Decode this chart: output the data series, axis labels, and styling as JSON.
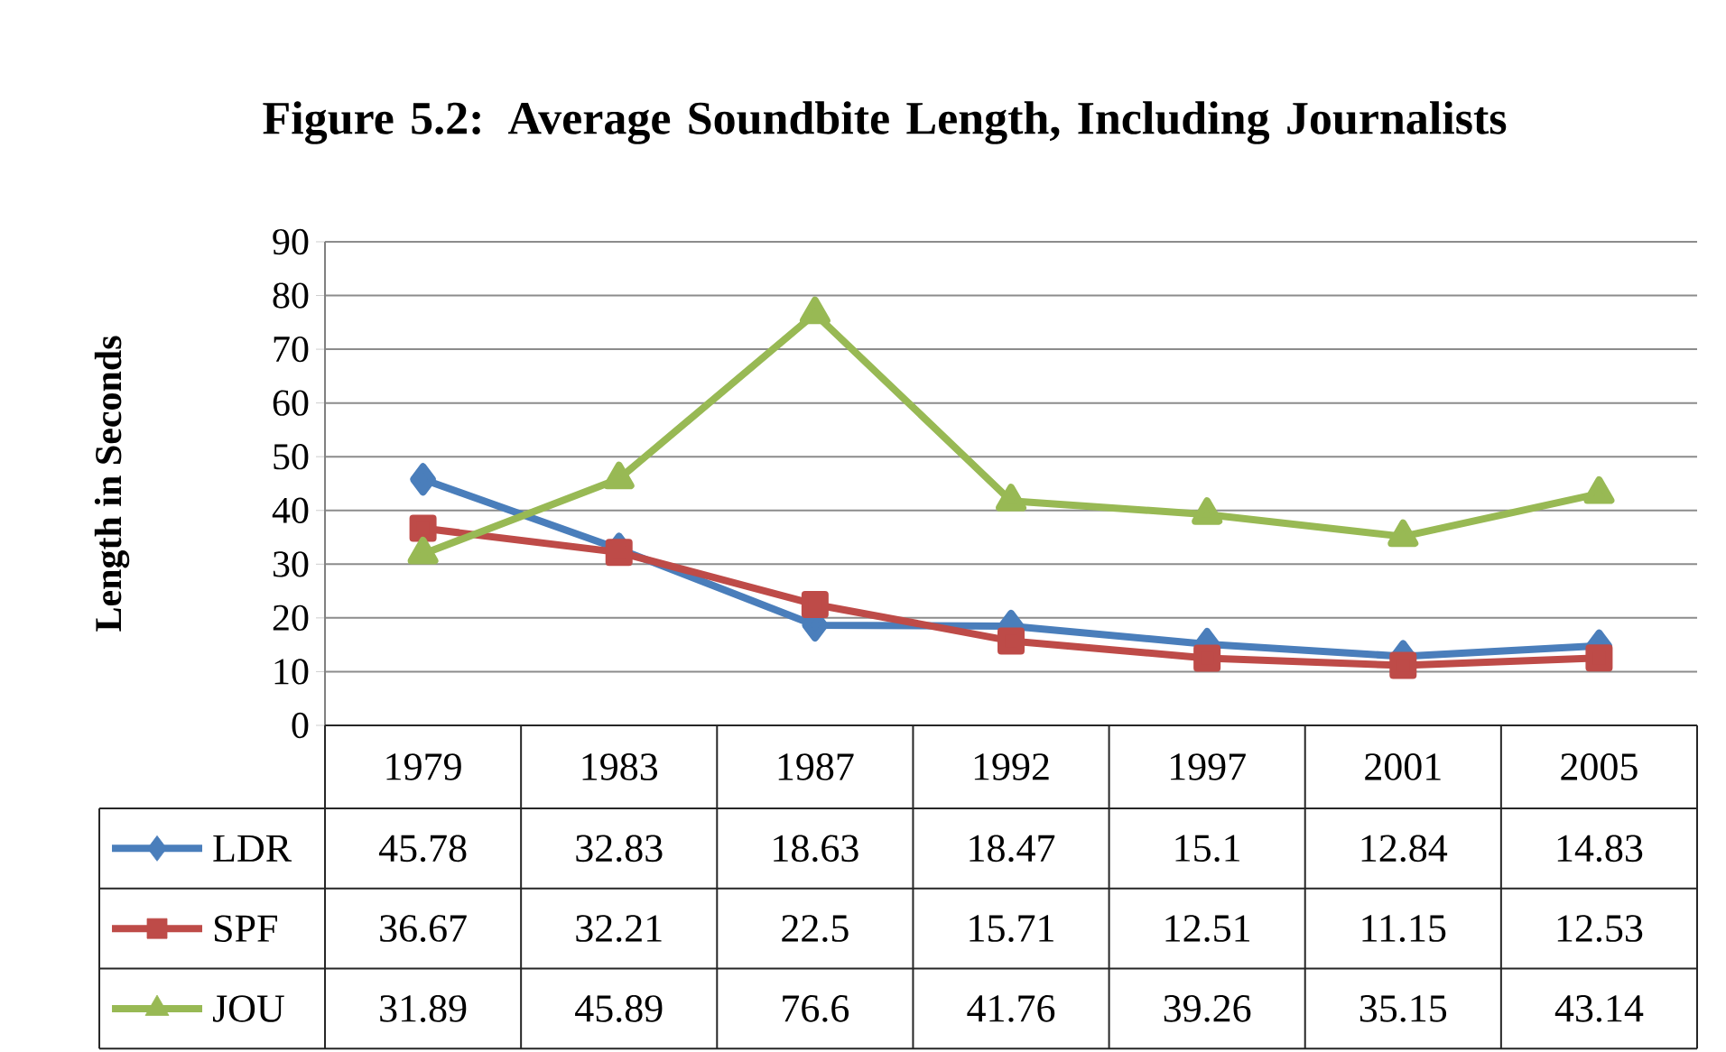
{
  "chart_data": {
    "type": "line",
    "title": "Figure 5.2: Average Soundbite Length, Including Journalists",
    "ylabel": "Length in Seconds",
    "categories": [
      "1979",
      "1983",
      "1987",
      "1992",
      "1997",
      "2001",
      "2005"
    ],
    "series": [
      {
        "name": "LDR",
        "color": "#4a7ebb",
        "marker": "diamond",
        "values": [
          45.78,
          32.83,
          18.63,
          18.47,
          15.1,
          12.84,
          14.83
        ]
      },
      {
        "name": "SPF",
        "color": "#be4b48",
        "marker": "square",
        "values": [
          36.67,
          32.21,
          22.5,
          15.71,
          12.51,
          11.15,
          12.53
        ]
      },
      {
        "name": "JOU",
        "color": "#98b954",
        "marker": "triangle",
        "values": [
          31.89,
          45.89,
          76.6,
          41.76,
          39.26,
          35.15,
          43.14
        ]
      }
    ],
    "ylim": [
      0,
      90
    ],
    "yticks": [
      0,
      10,
      20,
      30,
      40,
      50,
      60,
      70,
      80,
      90
    ],
    "grid": "y",
    "legend": "bottom",
    "data_labels": true,
    "line_style": "solid"
  }
}
